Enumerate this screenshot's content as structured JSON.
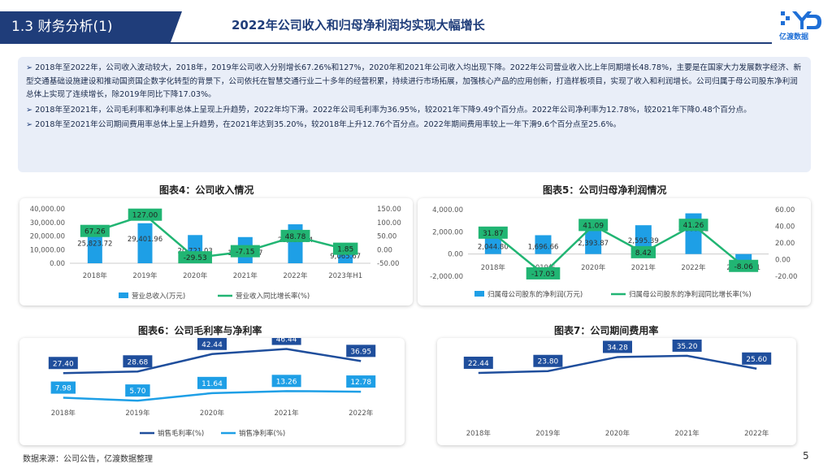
{
  "header": {
    "section_title": "1.3 财务分析(1)",
    "headline": "2022年公司收入和归母净利润均实现大幅增长",
    "logo_text": "亿渡数据"
  },
  "summary": [
    "2018年至2022年，公司收入波动较大，2018年，2019年公司收入分别增长67.26%和127%，2020年和2021年公司收入均出现下降。2022年公司营业收入比上年同期增长48.78%，主要是在国家大力发展数字经济、新型交通基础设施建设和推动国资国企数字化转型的背景下，公司依托在智慧交通行业二十多年的经营积累，持续进行市场拓展，加强核心产品的应用创新，打造样板项目，实现了收入和利润增长。公司归属于母公司股东净利润总体上实现了连续增长，除2019年同比下降17.03%。",
    "2018年至2021年，公司毛利率和净利率总体上呈现上升趋势，2022年均下滑。2022年公司毛利率为36.95%，较2021年下降9.49个百分点。2022年公司净利率为12.78%，较2021年下降0.48个百分点。",
    "2018年至2021年公司期间费用率总体上呈上升趋势，在2021年达到35.20%，较2018年上升12.76个百分点。2022年期间费用率较上一年下滑9.6个百分点至25.6%。"
  ],
  "chart_data": [
    {
      "type": "bar",
      "title": "图表4：公司收入情况",
      "categories": [
        "2018年",
        "2019年",
        "2020年",
        "2021年",
        "2022年",
        "2023年H1"
      ],
      "series": [
        {
          "name": "营业总收入(万元)",
          "kind": "bar",
          "axis": "left",
          "values": [
            25823.72,
            29401.96,
            20721.03,
            19238.77,
            28623.44,
            9065.67
          ],
          "labels": [
            "25,823.72",
            "29,401.96",
            "20,721.03",
            "19,238.77",
            "28,623.44",
            "9,065.67"
          ]
        },
        {
          "name": "营业收入同比增长率(%)",
          "kind": "line",
          "axis": "right",
          "values": [
            67.26,
            127.0,
            -29.53,
            -7.15,
            48.78,
            1.85
          ],
          "labels": [
            "67.26",
            "127.00",
            "-29.53",
            "-7.15",
            "48.78",
            "1.85"
          ]
        }
      ],
      "left_ticks": [
        "40,000.00",
        "30,000.00",
        "20,000.00",
        "10,000.00",
        "0.00"
      ],
      "right_ticks": [
        "150.00",
        "100.00",
        "50.00",
        "0.00",
        "-50.00"
      ],
      "ylim_left": [
        0,
        40000
      ],
      "ylim_right": [
        -50,
        150
      ],
      "colors": {
        "bar": "#1e9fe6",
        "line": "#21b573"
      }
    },
    {
      "type": "bar",
      "title": "图表5：公司归母净利润情况",
      "categories": [
        "2018年",
        "2019年",
        "2020年",
        "2021年",
        "2022年",
        "2023年H1"
      ],
      "series": [
        {
          "name": "归属母公司股东的净利润(万元)",
          "kind": "bar",
          "axis": "left",
          "values": [
            2044.8,
            1696.66,
            2393.87,
            2595.39,
            3666.12,
            -617.6
          ],
          "labels": [
            "2,044.80",
            "1,696.66",
            "2,393.87",
            "2,595.39",
            "3,666.12",
            "-617.60"
          ]
        },
        {
          "name": "归属母公司股东的净利润同比增长率(%)",
          "kind": "line",
          "axis": "right",
          "values": [
            31.87,
            -17.03,
            41.09,
            8.42,
            41.26,
            -8.06
          ],
          "labels": [
            "31.87",
            "-17.03",
            "41.09",
            "8.42",
            "41.26",
            "-8.06"
          ]
        }
      ],
      "left_ticks": [
        "4,000.00",
        "2,000.00",
        "0.00",
        "-2,000.00"
      ],
      "right_ticks": [
        "60.00",
        "40.00",
        "20.00",
        "0.00",
        "-20.00"
      ],
      "ylim_left": [
        -2000,
        4000
      ],
      "ylim_right": [
        -20,
        60
      ],
      "colors": {
        "bar": "#1e9fe6",
        "line": "#21b573"
      }
    },
    {
      "type": "line",
      "title": "图表6：公司毛利率与净利率",
      "categories": [
        "2018年",
        "2019年",
        "2020年",
        "2021年",
        "2022年"
      ],
      "series": [
        {
          "name": "销售毛利率(%)",
          "values": [
            27.4,
            28.68,
            42.44,
            46.44,
            36.95
          ],
          "labels": [
            "27.40",
            "28.68",
            "42.44",
            "46.44",
            "36.95"
          ]
        },
        {
          "name": "销售净利率(%)",
          "values": [
            7.98,
            5.7,
            11.64,
            13.26,
            12.78
          ],
          "labels": [
            "7.98",
            "5.70",
            "11.64",
            "13.26",
            "12.78"
          ]
        }
      ],
      "ylim": [
        0,
        50
      ],
      "colors": {
        "gross": "#1f4e9c",
        "net": "#1e9fe6"
      }
    },
    {
      "type": "line",
      "title": "图表7：公司期间费用率",
      "categories": [
        "2018年",
        "2019年",
        "2020年",
        "2021年",
        "2022年"
      ],
      "series": [
        {
          "name": "期间费用率",
          "values": [
            22.44,
            23.8,
            34.28,
            35.2,
            25.6
          ],
          "labels": [
            "22.44",
            "23.80",
            "34.28",
            "35.20",
            "25.60"
          ]
        }
      ],
      "ylim": [
        0,
        40
      ],
      "colors": {
        "line": "#1f4e9c"
      }
    }
  ],
  "footer": {
    "source": "数据来源：公司公告，亿渡数据整理",
    "page": "5"
  }
}
